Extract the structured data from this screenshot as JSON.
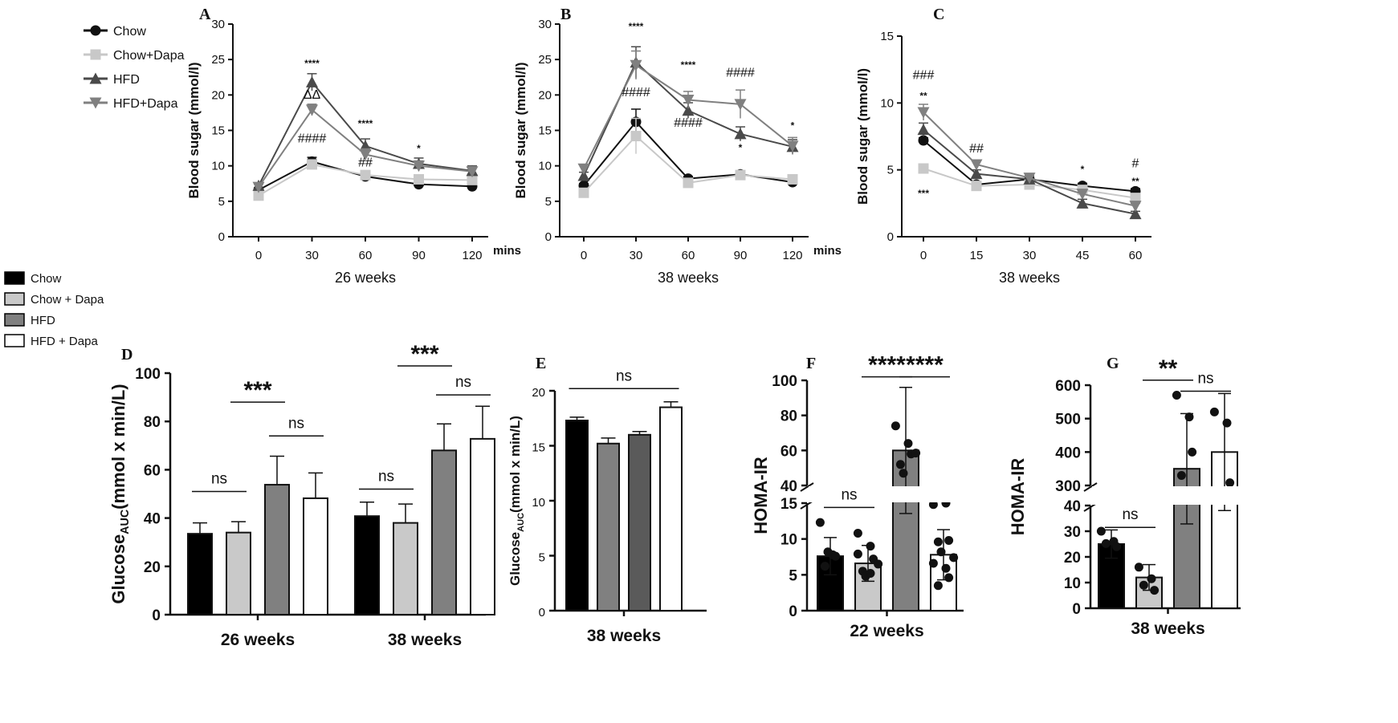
{
  "colors": {
    "chow": "#111111",
    "chow_dapa": "#c8c8c8",
    "hfd": "#4a4a4a",
    "hfd_dapa": "#808080",
    "bar_chow": "#000000",
    "bar_chow_dapa": "#c9c9c9",
    "bar_hfd": "#808080",
    "bar_hfd_dark": "#5a5a5a",
    "bar_hfd_dapa": "#ffffff"
  },
  "legend_lines": {
    "items": [
      {
        "label": "Chow",
        "marker": "circle",
        "color": "#111111"
      },
      {
        "label": "Chow+Dapa",
        "marker": "square",
        "color": "#c8c8c8"
      },
      {
        "label": "HFD",
        "marker": "triangle-up",
        "color": "#4a4a4a"
      },
      {
        "label": "HFD+Dapa",
        "marker": "triangle-down",
        "color": "#808080"
      }
    ]
  },
  "legend_bars": {
    "items": [
      {
        "label": "Chow",
        "color": "#000000"
      },
      {
        "label": "Chow + Dapa",
        "color": "#c9c9c9"
      },
      {
        "label": "HFD",
        "color": "#808080"
      },
      {
        "label": "HFD + Dapa",
        "color": "#ffffff"
      }
    ]
  },
  "chart_data": [
    {
      "panel": "A",
      "type": "line",
      "xlabel": "26 weeks",
      "x_unit": "mins",
      "ylabel": "Blood sugar (mmol/l)",
      "x": [
        0,
        30,
        60,
        90,
        120
      ],
      "ylim": [
        0,
        30
      ],
      "yticks": [
        0,
        5,
        10,
        15,
        20,
        25,
        30
      ],
      "series": [
        {
          "name": "Chow",
          "values": [
            6.6,
            10.6,
            8.5,
            7.4,
            7.1
          ],
          "err": [
            0.3,
            0.6,
            0.3,
            0.3,
            0.3
          ]
        },
        {
          "name": "Chow+Dapa",
          "values": [
            5.8,
            10.2,
            8.7,
            8.1,
            8.0
          ],
          "err": [
            0.3,
            0.5,
            0.3,
            0.3,
            0.3
          ]
        },
        {
          "name": "HFD",
          "values": [
            7.2,
            21.8,
            12.8,
            10.3,
            9.3
          ],
          "err": [
            0.4,
            1.2,
            1.0,
            0.8,
            0.7
          ]
        },
        {
          "name": "HFD+Dapa",
          "values": [
            7.0,
            17.9,
            11.6,
            10.0,
            9.2
          ],
          "err": [
            0.4,
            0.8,
            0.8,
            0.7,
            0.7
          ]
        }
      ],
      "annotations": [
        {
          "x": 30,
          "y": 24.0,
          "text": "****"
        },
        {
          "x": 30,
          "y": 19.5,
          "text": "ΔΔ"
        },
        {
          "x": 30,
          "y": 13.3,
          "text": "####"
        },
        {
          "x": 60,
          "y": 15.5,
          "text": "****"
        },
        {
          "x": 60,
          "y": 9.9,
          "text": "##"
        },
        {
          "x": 90,
          "y": 12.0,
          "text": "*"
        }
      ]
    },
    {
      "panel": "B",
      "type": "line",
      "xlabel": "38 weeks",
      "x_unit": "mins",
      "ylabel": "Blood sugar (mmol/l)",
      "x": [
        0,
        30,
        60,
        90,
        120
      ],
      "ylim": [
        0,
        30
      ],
      "yticks": [
        0,
        5,
        10,
        15,
        20,
        25,
        30
      ],
      "series": [
        {
          "name": "Chow",
          "values": [
            7.2,
            16.2,
            8.2,
            8.8,
            7.7
          ],
          "err": [
            0.3,
            1.8,
            0.3,
            0.3,
            0.6
          ]
        },
        {
          "name": "Chow+Dapa",
          "values": [
            6.2,
            14.2,
            7.6,
            8.7,
            8.1
          ],
          "err": [
            0.3,
            2.5,
            0.3,
            0.3,
            0.3
          ]
        },
        {
          "name": "HFD",
          "values": [
            8.6,
            24.6,
            17.8,
            14.5,
            12.7
          ],
          "err": [
            0.5,
            2.2,
            1.1,
            1.0,
            1.0
          ]
        },
        {
          "name": "HFD+Dapa",
          "values": [
            9.6,
            24.2,
            19.3,
            18.7,
            12.8
          ],
          "err": [
            0.5,
            2.0,
            1.2,
            2.0,
            1.2
          ]
        }
      ],
      "annotations": [
        {
          "x": 30,
          "y": 29.2,
          "text": "****"
        },
        {
          "x": 30,
          "y": 19.8,
          "text": "####"
        },
        {
          "x": 60,
          "y": 23.8,
          "text": "****"
        },
        {
          "x": 60,
          "y": 15.5,
          "text": "####"
        },
        {
          "x": 90,
          "y": 22.6,
          "text": "####"
        },
        {
          "x": 90,
          "y": 12.1,
          "text": "*"
        },
        {
          "x": 120,
          "y": 15.2,
          "text": "*"
        }
      ]
    },
    {
      "panel": "C",
      "type": "line",
      "xlabel": "38 weeks",
      "ylabel": "Blood sugar (mmol/l)",
      "x": [
        0,
        15,
        30,
        45,
        60
      ],
      "ylim": [
        0,
        15
      ],
      "yticks": [
        0,
        5,
        10,
        15
      ],
      "series": [
        {
          "name": "Chow",
          "values": [
            7.2,
            3.9,
            4.3,
            3.8,
            3.4
          ],
          "err": [
            0.2,
            0.2,
            0.2,
            0.2,
            0.2
          ]
        },
        {
          "name": "Chow+Dapa",
          "values": [
            5.1,
            3.8,
            3.9,
            3.5,
            2.9
          ],
          "err": [
            0.2,
            0.2,
            0.2,
            0.2,
            0.2
          ]
        },
        {
          "name": "HFD",
          "values": [
            8.0,
            4.7,
            4.3,
            2.5,
            1.7
          ],
          "err": [
            0.5,
            0.3,
            0.2,
            0.3,
            0.2
          ]
        },
        {
          "name": "HFD+Dapa",
          "values": [
            9.3,
            5.4,
            4.4,
            3.2,
            2.3
          ],
          "err": [
            0.6,
            0.3,
            0.2,
            0.3,
            0.2
          ]
        }
      ],
      "annotations": [
        {
          "x": 0,
          "y": 11.8,
          "text": "###"
        },
        {
          "x": 0,
          "y": 10.3,
          "text": "**"
        },
        {
          "x": 0,
          "y": 3.0,
          "text": "***"
        },
        {
          "x": 15,
          "y": 6.3,
          "text": "##"
        },
        {
          "x": 45,
          "y": 4.8,
          "text": "*"
        },
        {
          "x": 60,
          "y": 5.2,
          "text": "#"
        },
        {
          "x": 60,
          "y": 3.9,
          "text": "**"
        }
      ]
    },
    {
      "panel": "D",
      "type": "bar",
      "ylabel_main": "Glucose",
      "ylabel_sub": "AUC",
      "ylabel_rest": "(mmol x min/L)",
      "ylim": [
        0,
        100
      ],
      "yticks": [
        0,
        20,
        40,
        60,
        80,
        100
      ],
      "categories": [
        "26 weeks",
        "38 weeks"
      ],
      "series": [
        {
          "name": "Chow",
          "values": [
            33.5,
            40.8
          ],
          "err": [
            4.5,
            5.8
          ]
        },
        {
          "name": "Chow + Dapa",
          "values": [
            34.0,
            38.0
          ],
          "err": [
            4.5,
            7.8
          ]
        },
        {
          "name": "HFD",
          "values": [
            53.8,
            68.0
          ],
          "err": [
            11.8,
            11.0
          ]
        },
        {
          "name": "HFD + Dapa",
          "values": [
            48.2,
            72.8
          ],
          "err": [
            10.5,
            13.5
          ]
        }
      ],
      "significance": [
        {
          "group": 0,
          "from": 0,
          "to": 1,
          "y": 51,
          "text": "ns"
        },
        {
          "group": 0,
          "from": 1,
          "to": 2,
          "y": 88,
          "text": "***"
        },
        {
          "group": 0,
          "from": 2,
          "to": 3,
          "y": 74,
          "text": "ns"
        },
        {
          "group": 1,
          "from": 0,
          "to": 1,
          "y": 52,
          "text": "ns"
        },
        {
          "group": 1,
          "from": 1,
          "to": 2,
          "y": 103,
          "text": "***"
        },
        {
          "group": 1,
          "from": 2,
          "to": 3,
          "y": 91,
          "text": "ns"
        }
      ]
    },
    {
      "panel": "E",
      "type": "bar",
      "ylabel_main": "Glucose",
      "ylabel_sub": "AUC",
      "ylabel_rest": "(mmol x min/L)",
      "ylim": [
        0,
        20
      ],
      "yticks": [
        0,
        5,
        10,
        15,
        20
      ],
      "categories": [
        "38 weeks"
      ],
      "series": [
        {
          "name": "Chow",
          "values": [
            17.3
          ],
          "err": [
            0.3
          ]
        },
        {
          "name": "Chow + Dapa",
          "values": [
            15.2
          ],
          "err": [
            0.5
          ]
        },
        {
          "name": "HFD",
          "values": [
            16.0
          ],
          "err": [
            0.3
          ]
        },
        {
          "name": "HFD + Dapa",
          "values": [
            18.5
          ],
          "err": [
            0.5
          ]
        }
      ],
      "significance": [
        {
          "group": 0,
          "from": 0,
          "to": 3,
          "y": 20.2,
          "text": "ns"
        }
      ]
    },
    {
      "panel": "F",
      "type": "bar",
      "ylabel": "HOMA-IR",
      "axis_break": true,
      "ylim_lower": [
        0,
        15
      ],
      "ylim_upper": [
        40,
        100
      ],
      "yticks_lower": [
        0,
        5,
        10,
        15
      ],
      "yticks_upper": [
        40,
        60,
        80,
        100
      ],
      "categories": [
        "22 weeks"
      ],
      "series": [
        {
          "name": "Chow",
          "values": [
            7.6
          ],
          "err": [
            2.6
          ],
          "points": [
            12.3,
            7.8,
            7.6,
            6.2,
            8.2
          ]
        },
        {
          "name": "Chow + Dapa",
          "values": [
            6.6
          ],
          "err": [
            2.5
          ],
          "points": [
            10.8,
            9.0,
            7.2,
            5.5,
            4.8,
            6.5,
            7.9,
            5.2
          ]
        },
        {
          "name": "HFD",
          "values": [
            60.0
          ],
          "err": [
            36.0
          ],
          "points": [
            74.0,
            64.0,
            58.0,
            52.0,
            47.0,
            58.5
          ]
        },
        {
          "name": "HFD + Dapa",
          "values": [
            7.8
          ],
          "err": [
            3.5
          ],
          "points": [
            14.8,
            15.0,
            9.8,
            9.6,
            8.2,
            7.4,
            6.6,
            5.9,
            4.6,
            3.5
          ]
        }
      ],
      "significance": [
        {
          "group": 0,
          "from": 0,
          "to": 1,
          "y": 14.4,
          "text": "ns"
        },
        {
          "group": 0,
          "from": 1,
          "to": 2,
          "y": 102,
          "text": "****"
        },
        {
          "group": 0,
          "from": 2,
          "to": 3,
          "y": 102,
          "text": "****"
        }
      ]
    },
    {
      "panel": "G",
      "type": "bar",
      "ylabel": "HOMA-IR",
      "axis_break": true,
      "ylim_lower": [
        0,
        40
      ],
      "ylim_upper": [
        300,
        600
      ],
      "yticks_lower": [
        0,
        10,
        20,
        30,
        40
      ],
      "yticks_upper": [
        300,
        400,
        500,
        600
      ],
      "categories": [
        "38 weeks"
      ],
      "series": [
        {
          "name": "Chow",
          "values": [
            25.0
          ],
          "err": [
            5.5
          ],
          "points": [
            30.0,
            26.0,
            24.0,
            25.2
          ]
        },
        {
          "name": "Chow + Dapa",
          "values": [
            12.0
          ],
          "err": [
            5.0
          ],
          "points": [
            16.0,
            11.5,
            7.0,
            9.0
          ]
        },
        {
          "name": "HFD",
          "values": [
            350.0
          ],
          "err": [
            165.0
          ],
          "points": [
            570.0,
            505.0,
            400.0,
            330.0
          ]
        },
        {
          "name": "HFD + Dapa",
          "values": [
            400.0
          ],
          "err": [
            175.0
          ],
          "points": [
            520.0,
            487.0,
            308.0
          ]
        }
      ],
      "significance": [
        {
          "group": 0,
          "from": 0,
          "to": 1,
          "y": 31.5,
          "text": "ns"
        },
        {
          "group": 0,
          "from": 1,
          "to": 2,
          "y": 615,
          "text": "**"
        },
        {
          "group": 0,
          "from": 2,
          "to": 3,
          "y": 582,
          "text": "ns"
        }
      ]
    }
  ]
}
